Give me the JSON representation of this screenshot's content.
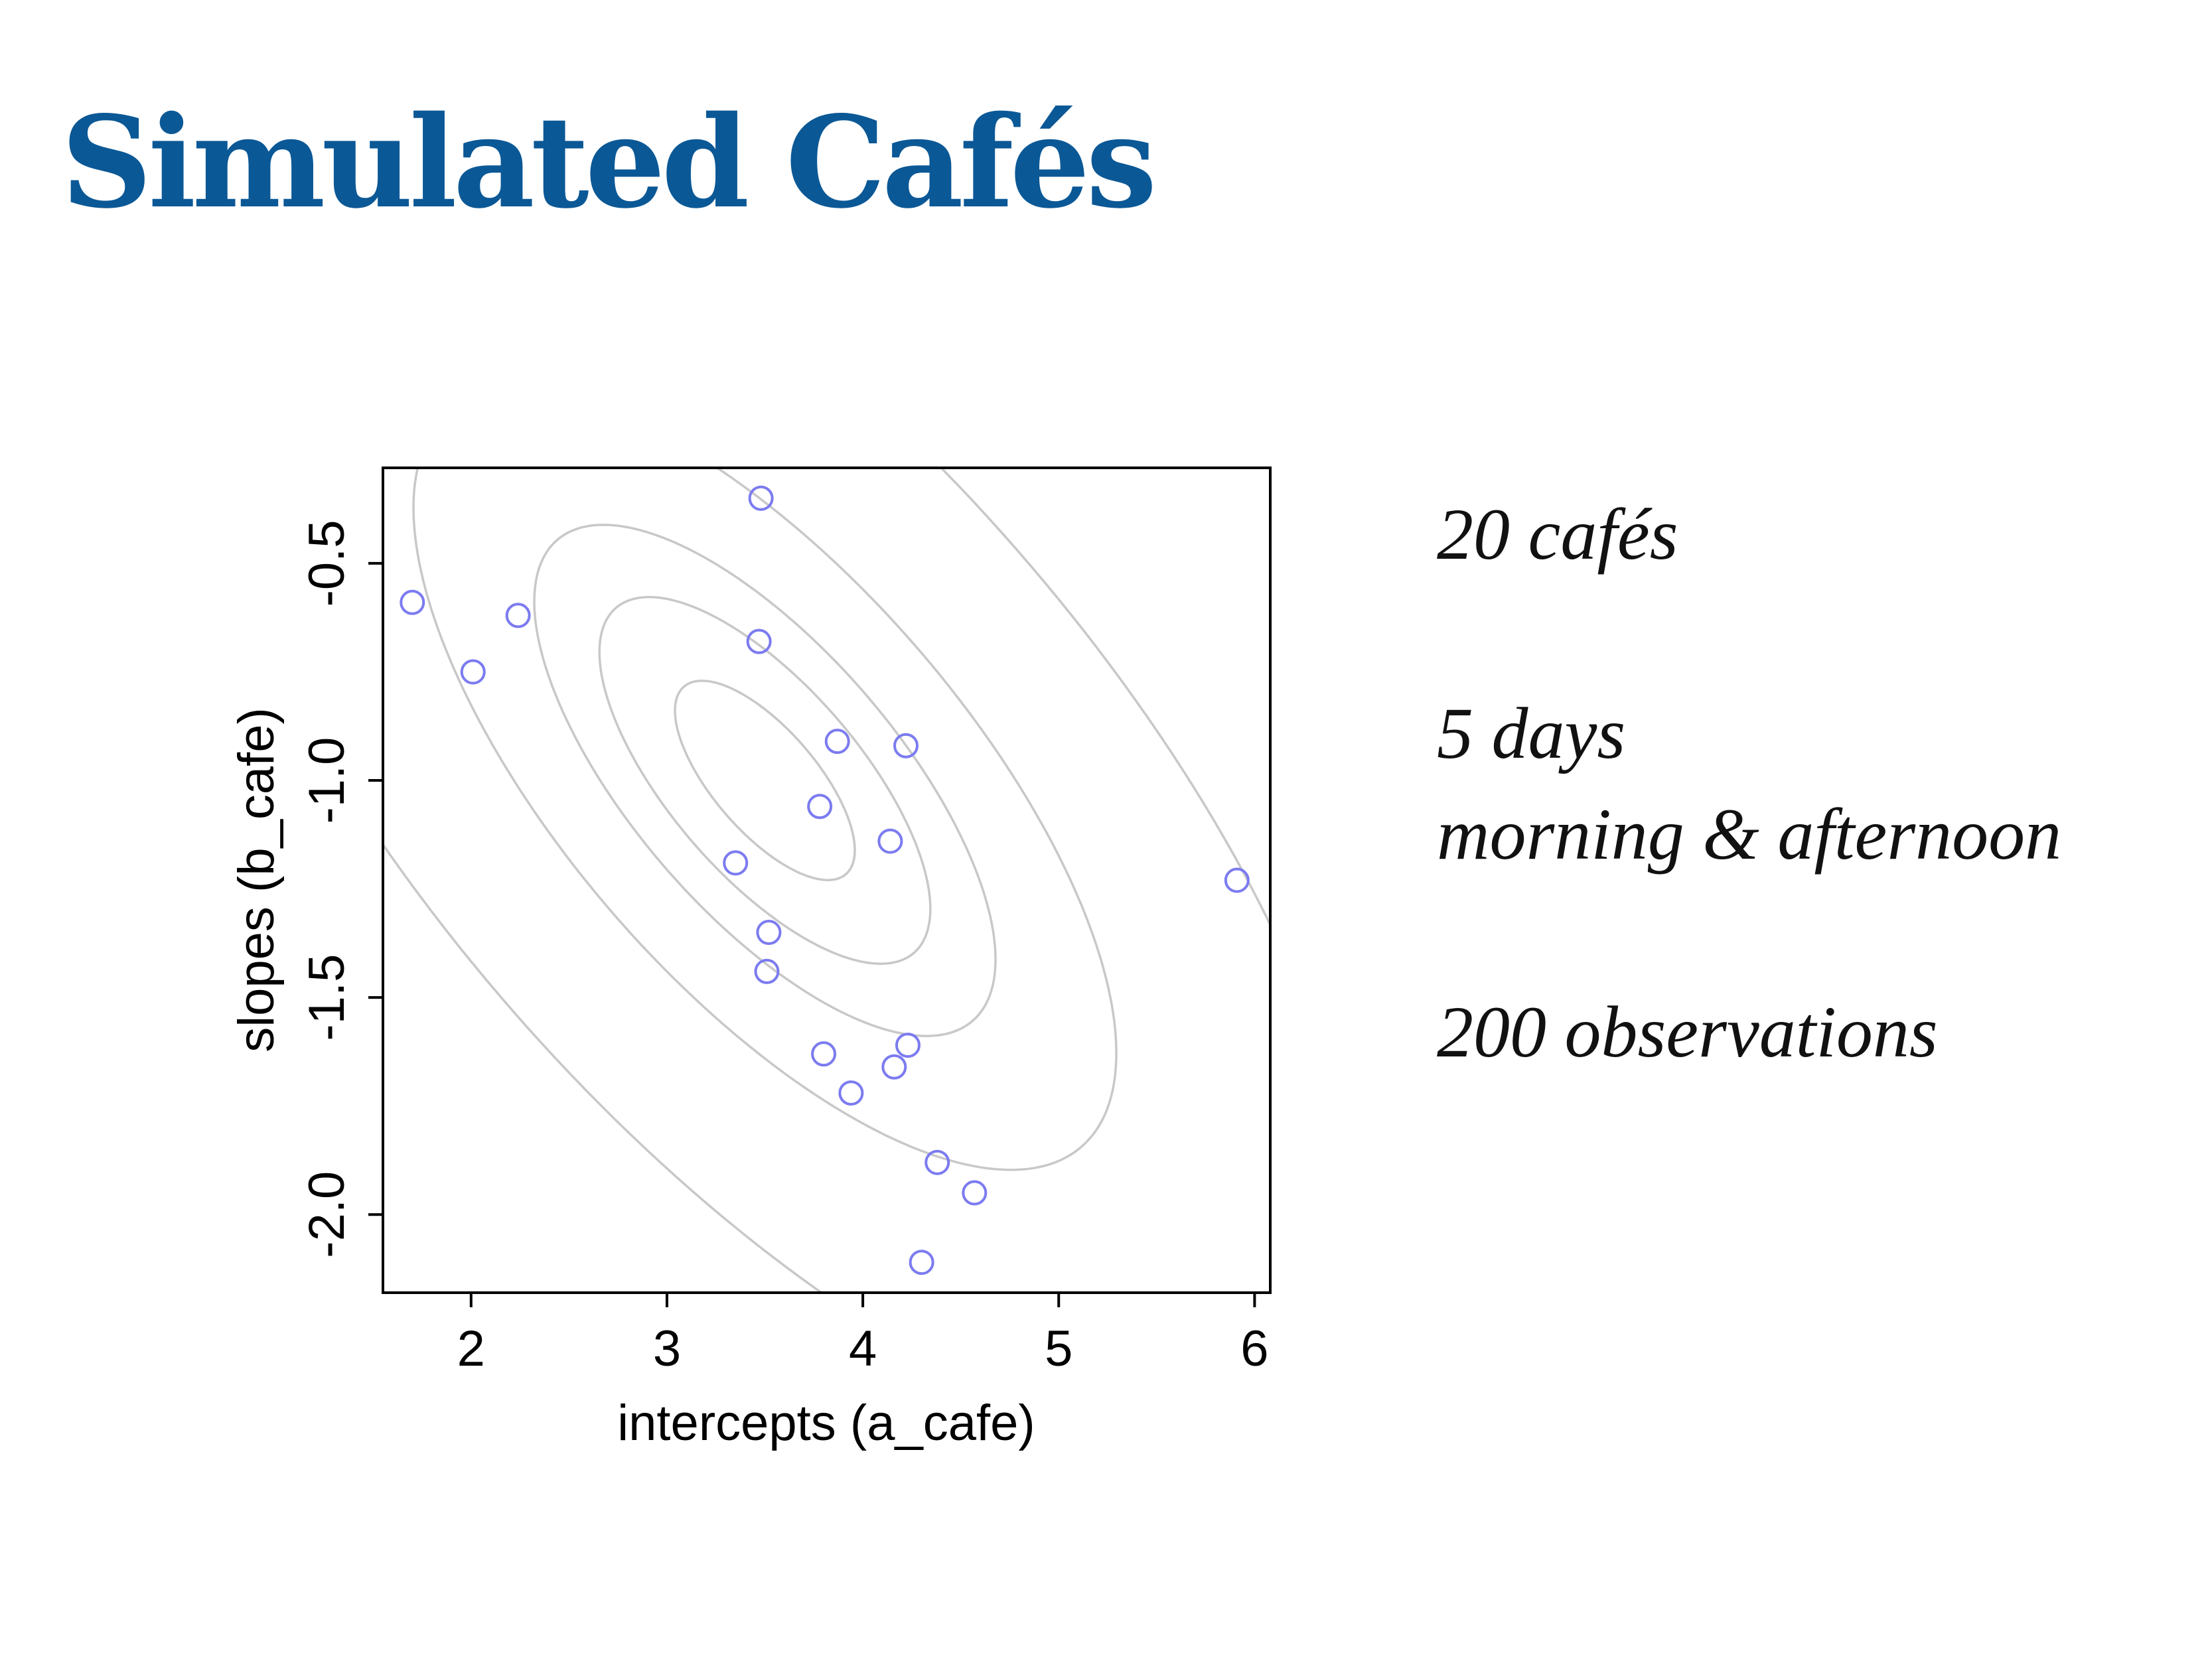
{
  "title": "Simulated Cafés",
  "colors": {
    "title": "#0b5896",
    "points": "#7b7bf0",
    "contours": "#c8c8c8",
    "axis": "#000000"
  },
  "notes": {
    "cafes": "20 cafés",
    "days": "5 days",
    "times": "morning & afternoon",
    "observations": "200 observations"
  },
  "chart_data": {
    "type": "scatter",
    "xlabel": "intercepts (a_cafe)",
    "ylabel": "slopes (b_cafe)",
    "xlim": [
      1.55,
      6.08
    ],
    "ylim": [
      -2.18,
      -0.28
    ],
    "xticks": [
      2,
      3,
      4,
      5,
      6
    ],
    "xtick_labels": [
      "2",
      "3",
      "4",
      "5",
      "6"
    ],
    "yticks": [
      -2.0,
      -1.5,
      -1.0,
      -0.5
    ],
    "ytick_labels": [
      "-2.0",
      "-1.5",
      "-1.0",
      "-0.5"
    ],
    "grid": false,
    "points": [
      {
        "x": 3.48,
        "y": -0.35
      },
      {
        "x": 1.7,
        "y": -0.59
      },
      {
        "x": 2.24,
        "y": -0.62
      },
      {
        "x": 2.01,
        "y": -0.75
      },
      {
        "x": 3.47,
        "y": -0.68
      },
      {
        "x": 3.87,
        "y": -0.91
      },
      {
        "x": 4.22,
        "y": -0.92
      },
      {
        "x": 3.78,
        "y": -1.06
      },
      {
        "x": 4.14,
        "y": -1.14
      },
      {
        "x": 3.35,
        "y": -1.19
      },
      {
        "x": 5.91,
        "y": -1.23
      },
      {
        "x": 3.52,
        "y": -1.35
      },
      {
        "x": 3.51,
        "y": -1.44
      },
      {
        "x": 3.8,
        "y": -1.63
      },
      {
        "x": 4.23,
        "y": -1.61
      },
      {
        "x": 4.16,
        "y": -1.66
      },
      {
        "x": 3.94,
        "y": -1.72
      },
      {
        "x": 4.38,
        "y": -1.88
      },
      {
        "x": 4.57,
        "y": -1.95
      },
      {
        "x": 4.3,
        "y": -2.11
      }
    ],
    "contours": {
      "center": {
        "x": 3.5,
        "y": -1.0
      },
      "sd": {
        "x": 1.0,
        "y": 0.5
      },
      "rho": -0.7,
      "levels": [
        0.1,
        0.3,
        0.5,
        0.8,
        0.99
      ]
    }
  }
}
